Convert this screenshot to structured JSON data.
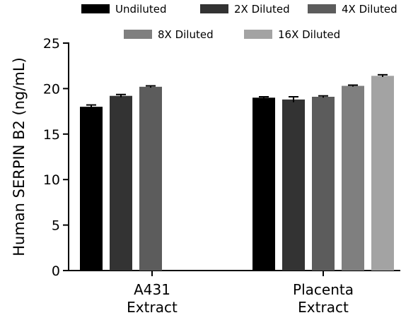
{
  "chart_data": {
    "type": "bar",
    "categories": [
      {
        "line1": "A431",
        "line2": "Extract"
      },
      {
        "line1": "Placenta",
        "line2": "Extract"
      }
    ],
    "ylabel": "Human SERPIN B2 (ng/mL)",
    "ylim": [
      0,
      25
    ],
    "yticks": [
      "0",
      "5",
      "10",
      "15",
      "20",
      "25"
    ],
    "series": [
      {
        "name": "Undiluted",
        "color": "#000000",
        "values": [
          18.0,
          19.0
        ],
        "errors": [
          0.2,
          0.1
        ]
      },
      {
        "name": "2X Diluted",
        "color": "#333333",
        "values": [
          19.2,
          18.8
        ],
        "errors": [
          0.15,
          0.3
        ]
      },
      {
        "name": "4X Diluted",
        "color": "#5c5c5c",
        "values": [
          20.2,
          19.1
        ],
        "errors": [
          0.1,
          0.1
        ]
      },
      {
        "name": "8X Diluted",
        "color": "#7f7f7f",
        "values": [
          null,
          20.3
        ],
        "errors": [
          null,
          0.08
        ]
      },
      {
        "name": "16X Diluted",
        "color": "#a3a3a3",
        "values": [
          null,
          21.4
        ],
        "errors": [
          null,
          0.12
        ]
      }
    ],
    "legend": "top",
    "grid": false
  }
}
